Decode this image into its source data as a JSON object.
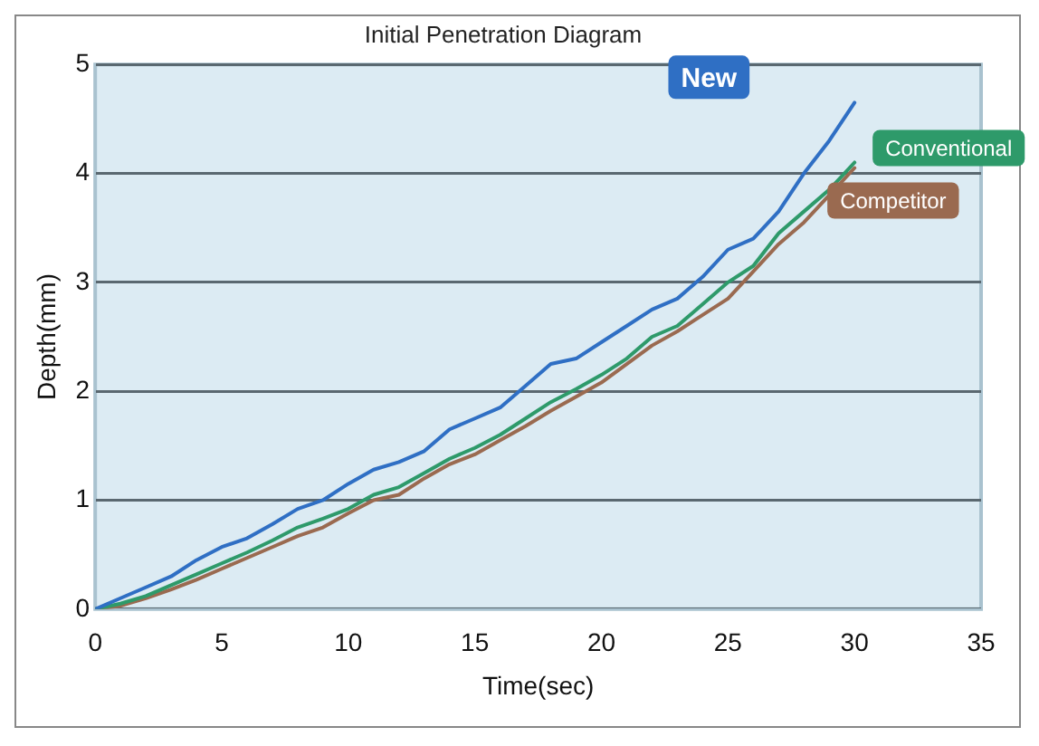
{
  "chart_data": {
    "type": "line",
    "title": "Initial Penetration Diagram",
    "xlabel": "Time(sec)",
    "ylabel": "Depth(mm)",
    "x": [
      0,
      1,
      2,
      3,
      4,
      5,
      6,
      7,
      8,
      9,
      10,
      11,
      12,
      13,
      14,
      15,
      16,
      17,
      18,
      19,
      20,
      21,
      22,
      23,
      24,
      25,
      26,
      27,
      28,
      29,
      30
    ],
    "series": [
      {
        "name": "New",
        "color": "#2f6fc4",
        "values": [
          0,
          0.1,
          0.2,
          0.3,
          0.45,
          0.57,
          0.65,
          0.78,
          0.92,
          1.0,
          1.15,
          1.28,
          1.35,
          1.45,
          1.65,
          1.75,
          1.85,
          2.05,
          2.25,
          2.3,
          2.45,
          2.6,
          2.75,
          2.85,
          3.05,
          3.3,
          3.4,
          3.65,
          4.0,
          4.3,
          4.65
        ]
      },
      {
        "name": "Conventional",
        "color": "#2e9a6a",
        "values": [
          0,
          0.05,
          0.12,
          0.22,
          0.32,
          0.42,
          0.52,
          0.63,
          0.75,
          0.83,
          0.92,
          1.05,
          1.12,
          1.25,
          1.38,
          1.48,
          1.6,
          1.75,
          1.9,
          2.02,
          2.15,
          2.3,
          2.5,
          2.6,
          2.8,
          3.0,
          3.15,
          3.45,
          3.65,
          3.85,
          4.1
        ]
      },
      {
        "name": "Competitor",
        "color": "#9a6a50",
        "values": [
          0,
          0.03,
          0.1,
          0.18,
          0.27,
          0.37,
          0.47,
          0.57,
          0.67,
          0.75,
          0.88,
          1.0,
          1.05,
          1.2,
          1.33,
          1.42,
          1.55,
          1.68,
          1.82,
          1.95,
          2.08,
          2.25,
          2.42,
          2.55,
          2.7,
          2.85,
          3.1,
          3.35,
          3.55,
          3.8,
          4.05
        ]
      }
    ],
    "xlim": [
      0,
      35
    ],
    "xticks": [
      0,
      5,
      10,
      15,
      20,
      25,
      30,
      35
    ],
    "ylim": [
      0,
      5
    ],
    "yticks": [
      0,
      1,
      2,
      3,
      4,
      5
    ],
    "grid": "y",
    "legend": false,
    "marker": "none",
    "line_style": "solid"
  }
}
